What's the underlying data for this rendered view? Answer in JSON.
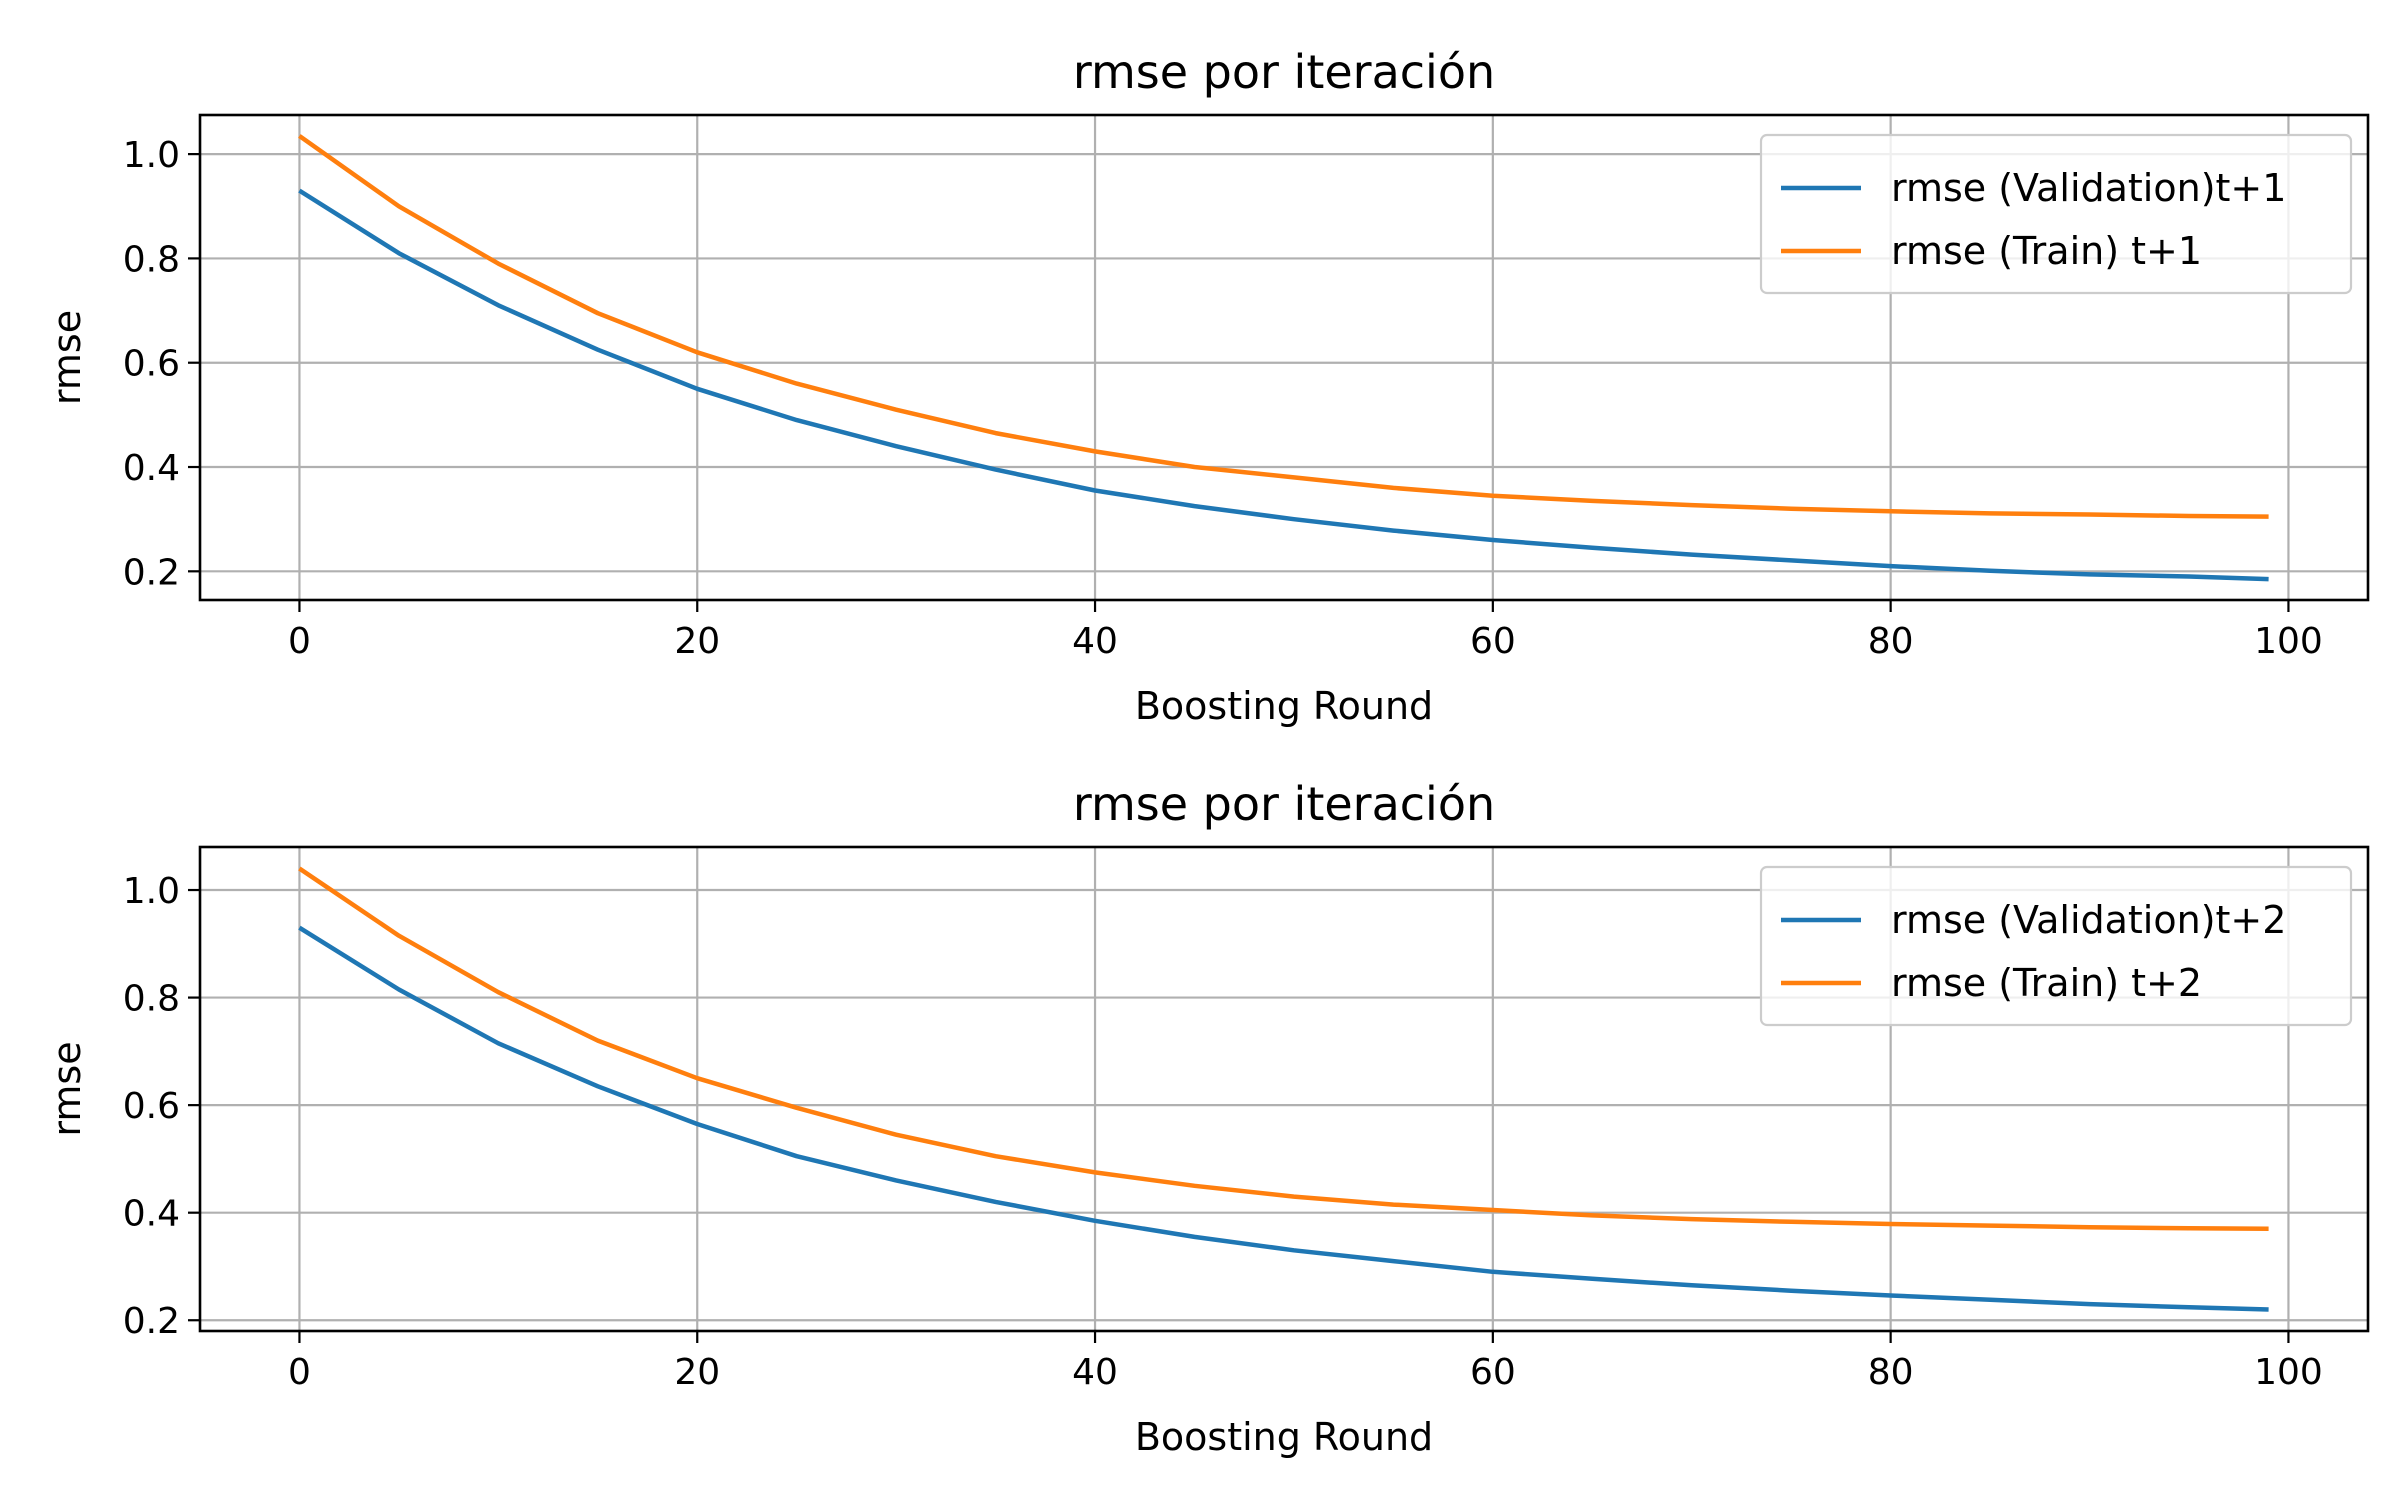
{
  "chart_data": [
    {
      "type": "line",
      "title": "rmse por iteración",
      "xlabel": "Boosting Round",
      "ylabel": "rmse",
      "xlim": [
        -5,
        104
      ],
      "ylim": [
        0.145,
        1.075
      ],
      "xticks": [
        0,
        20,
        40,
        60,
        80,
        100
      ],
      "xtick_labels": [
        "0",
        "20",
        "40",
        "60",
        "80",
        "100"
      ],
      "yticks": [
        0.2,
        0.4,
        0.6,
        0.8,
        1.0
      ],
      "ytick_labels": [
        "0.2",
        "0.4",
        "0.6",
        "0.8",
        "1.0"
      ],
      "grid": true,
      "legend_position": "top-right",
      "x": [
        0,
        5,
        10,
        15,
        20,
        25,
        30,
        35,
        40,
        45,
        50,
        55,
        60,
        65,
        70,
        75,
        80,
        85,
        90,
        95,
        99
      ],
      "series": [
        {
          "name": "rmse (Validation)t+1",
          "color": "#1f77b4",
          "values": [
            0.93,
            0.81,
            0.71,
            0.625,
            0.55,
            0.49,
            0.44,
            0.395,
            0.355,
            0.325,
            0.3,
            0.278,
            0.26,
            0.245,
            0.232,
            0.221,
            0.21,
            0.201,
            0.194,
            0.19,
            0.185
          ]
        },
        {
          "name": "rmse (Train) t+1",
          "color": "#ff7f0e",
          "values": [
            1.035,
            0.9,
            0.79,
            0.695,
            0.62,
            0.56,
            0.51,
            0.465,
            0.43,
            0.4,
            0.38,
            0.36,
            0.345,
            0.335,
            0.327,
            0.32,
            0.315,
            0.311,
            0.309,
            0.306,
            0.305
          ]
        }
      ]
    },
    {
      "type": "line",
      "title": "rmse por iteración",
      "xlabel": "Boosting Round",
      "ylabel": "rmse",
      "xlim": [
        -5,
        104
      ],
      "ylim": [
        0.18,
        1.08
      ],
      "xticks": [
        0,
        20,
        40,
        60,
        80,
        100
      ],
      "xtick_labels": [
        "0",
        "20",
        "40",
        "60",
        "80",
        "100"
      ],
      "yticks": [
        0.2,
        0.4,
        0.6,
        0.8,
        1.0
      ],
      "ytick_labels": [
        "0.2",
        "0.4",
        "0.6",
        "0.8",
        "1.0"
      ],
      "grid": true,
      "legend_position": "top-right",
      "x": [
        0,
        5,
        10,
        15,
        20,
        25,
        30,
        35,
        40,
        45,
        50,
        55,
        60,
        65,
        70,
        75,
        80,
        85,
        90,
        95,
        99
      ],
      "series": [
        {
          "name": "rmse (Validation)t+2",
          "color": "#1f77b4",
          "values": [
            0.93,
            0.815,
            0.715,
            0.635,
            0.565,
            0.505,
            0.46,
            0.42,
            0.385,
            0.355,
            0.33,
            0.31,
            0.29,
            0.277,
            0.265,
            0.255,
            0.246,
            0.238,
            0.23,
            0.224,
            0.22
          ]
        },
        {
          "name": "rmse (Train) t+2",
          "color": "#ff7f0e",
          "values": [
            1.04,
            0.915,
            0.81,
            0.72,
            0.65,
            0.595,
            0.545,
            0.505,
            0.475,
            0.45,
            0.43,
            0.415,
            0.405,
            0.395,
            0.388,
            0.383,
            0.379,
            0.376,
            0.373,
            0.371,
            0.37
          ]
        }
      ]
    }
  ]
}
